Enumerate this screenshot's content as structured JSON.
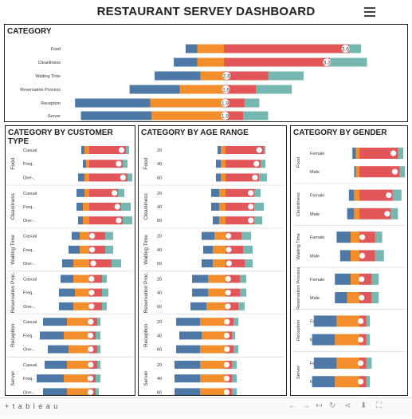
{
  "dashboard": {
    "title": "RESTAURANT SERVEY DASHBOARD"
  },
  "colors": {
    "blue": "#4e79a7",
    "orange": "#f28e2b",
    "red": "#e15759",
    "teal": "#76b7b2"
  },
  "footer": {
    "logo": "+ t a b l e a u",
    "controls": [
      {
        "name": "undo-icon",
        "glyph": "←"
      },
      {
        "name": "redo-icon",
        "glyph": "→"
      },
      {
        "name": "revert-icon",
        "glyph": "↤"
      },
      {
        "name": "refresh-icon",
        "glyph": "↻"
      },
      {
        "name": "share-icon",
        "glyph": "⋖"
      },
      {
        "name": "download-icon",
        "glyph": "⬇"
      },
      {
        "name": "fullscreen-icon",
        "glyph": "⛶"
      }
    ]
  },
  "chart_data": [
    {
      "id": "category",
      "type": "bar",
      "title": "CATEGORY",
      "stacking": "diverging",
      "categories": [
        "Food",
        "Cleanliness",
        "Waiting Time",
        "Reservation Process",
        "Reception",
        "Server"
      ],
      "series": [
        {
          "values": [
            -0.8,
            -1.6,
            -3.1,
            -3.4,
            -5.1,
            -4.8
          ]
        },
        {
          "values": [
            -1.8,
            -1.8,
            -1.6,
            -3.0,
            -5.0,
            -4.9
          ]
        },
        {
          "values": [
            8.5,
            7.2,
            3.0,
            2.2,
            1.4,
            1.3
          ]
        },
        {
          "values": [
            0.8,
            2.5,
            2.4,
            2.4,
            1.0,
            1.7
          ]
        }
      ],
      "labels": [
        "3.6",
        "3.3",
        "2.6",
        "2.6",
        "1.9",
        "1.9"
      ],
      "label_position": "red-start"
    },
    {
      "id": "customer_type",
      "type": "bar",
      "title": "CATEGORY BY CUSTOMER TYPE",
      "stacking": "diverging",
      "groups": [
        "Food",
        "Cleanliness",
        "Waiting Time",
        "Reservation Proc.",
        "Reception",
        "Server"
      ],
      "categories": [
        "Casual",
        "Freq..",
        "One-.."
      ],
      "series": [
        {
          "values": [
            [
              -0.2,
              -0.2,
              -0.4
            ],
            [
              -0.5,
              -0.4,
              -0.3
            ],
            [
              -0.5,
              -0.7,
              -0.7
            ],
            [
              -0.8,
              -1.0,
              -0.9
            ],
            [
              -1.5,
              -1.5,
              -1.3
            ],
            [
              -1.4,
              -1.7,
              -1.5
            ]
          ]
        },
        {
          "values": [
            [
              -0.3,
              -0.2,
              -0.3
            ],
            [
              -0.3,
              -0.4,
              -0.4
            ],
            [
              -0.6,
              -0.6,
              -1.0
            ],
            [
              -1.0,
              -0.9,
              -1.0
            ],
            [
              -1.4,
              -1.6,
              -1.3
            ],
            [
              -1.4,
              -1.6,
              -1.4
            ]
          ]
        },
        {
          "values": [
            [
              2.3,
              2.1,
              2.4
            ],
            [
              1.8,
              2.0,
              2.1
            ],
            [
              1.0,
              1.0,
              1.4
            ],
            [
              0.8,
              0.8,
              0.8
            ],
            [
              0.5,
              0.4,
              0.5
            ],
            [
              0.5,
              0.4,
              0.4
            ]
          ]
        },
        {
          "values": [
            [
              0.2,
              0.3,
              0.3
            ],
            [
              0.4,
              0.6,
              0.6
            ],
            [
              0.5,
              0.5,
              0.6
            ],
            [
              0.3,
              0.4,
              0.3
            ],
            [
              0.2,
              0.3,
              0.2
            ],
            [
              0.2,
              0.3,
              0.2
            ]
          ]
        }
      ]
    },
    {
      "id": "age_range",
      "type": "bar",
      "title": "CATEGORY BY AGE RANGE",
      "stacking": "diverging",
      "groups": [
        "Food",
        "Cleanliness",
        "Waiting Time",
        "Reservation Proc.",
        "Reception",
        "Server"
      ],
      "categories": [
        "20",
        "40",
        "60"
      ],
      "series": [
        {
          "values": [
            [
              -0.2,
              -0.3,
              -0.3
            ],
            [
              -0.5,
              -0.5,
              -0.4
            ],
            [
              -0.8,
              -0.6,
              -0.7
            ],
            [
              -1.0,
              -1.0,
              -1.0
            ],
            [
              -1.5,
              -1.4,
              -1.5
            ],
            [
              -1.6,
              -1.6,
              -1.6
            ]
          ]
        },
        {
          "values": [
            [
              -0.3,
              -0.3,
              -0.3
            ],
            [
              -0.4,
              -0.4,
              -0.4
            ],
            [
              -0.7,
              -0.8,
              -0.8
            ],
            [
              -1.1,
              -1.1,
              -1.2
            ],
            [
              -1.6,
              -1.5,
              -1.6
            ],
            [
              -1.6,
              -1.6,
              -1.6
            ]
          ]
        },
        {
          "values": [
            [
              2.4,
              2.2,
              2.1
            ],
            [
              1.8,
              1.8,
              1.8
            ],
            [
              1.0,
              1.1,
              1.2
            ],
            [
              0.9,
              0.9,
              0.8
            ],
            [
              0.5,
              0.4,
              0.5
            ],
            [
              0.4,
              0.4,
              0.4
            ]
          ]
        },
        {
          "values": [
            [
              0.1,
              0.3,
              0.5
            ],
            [
              0.4,
              0.6,
              0.5
            ],
            [
              0.6,
              0.6,
              0.5
            ],
            [
              0.4,
              0.4,
              0.4
            ],
            [
              0.3,
              0.2,
              0.3
            ],
            [
              0.3,
              0.3,
              0.3
            ]
          ]
        }
      ]
    },
    {
      "id": "gender",
      "type": "bar",
      "title": "CATEGORY BY GENDER",
      "stacking": "diverging",
      "groups": [
        "Food",
        "Cleanliness",
        "Waiting Time",
        "Reservation Process",
        "Reception",
        "Server"
      ],
      "categories": [
        "Female",
        "Male"
      ],
      "series": [
        {
          "values": [
            [
              -0.2,
              -0.1
            ],
            [
              -0.3,
              -0.4
            ],
            [
              -0.8,
              -0.6
            ],
            [
              -0.9,
              -0.7
            ],
            [
              -1.3,
              -1.3
            ],
            [
              -1.3,
              -1.3
            ]
          ]
        },
        {
          "values": [
            [
              -0.2,
              -0.2
            ],
            [
              -0.3,
              -0.3
            ],
            [
              -0.5,
              -0.5
            ],
            [
              -0.5,
              -0.7
            ],
            [
              -1.3,
              -1.4
            ],
            [
              -1.3,
              -1.4
            ]
          ]
        },
        {
          "values": [
            [
              2.2,
              2.3
            ],
            [
              1.9,
              1.8
            ],
            [
              0.9,
              0.9
            ],
            [
              0.7,
              0.7
            ],
            [
              0.4,
              0.4
            ],
            [
              0.4,
              0.4
            ]
          ]
        },
        {
          "values": [
            [
              0.3,
              0.3
            ],
            [
              0.5,
              0.4
            ],
            [
              0.4,
              0.5
            ],
            [
              0.4,
              0.4
            ],
            [
              0.2,
              0.2
            ],
            [
              0.3,
              0.2
            ]
          ]
        }
      ]
    }
  ]
}
